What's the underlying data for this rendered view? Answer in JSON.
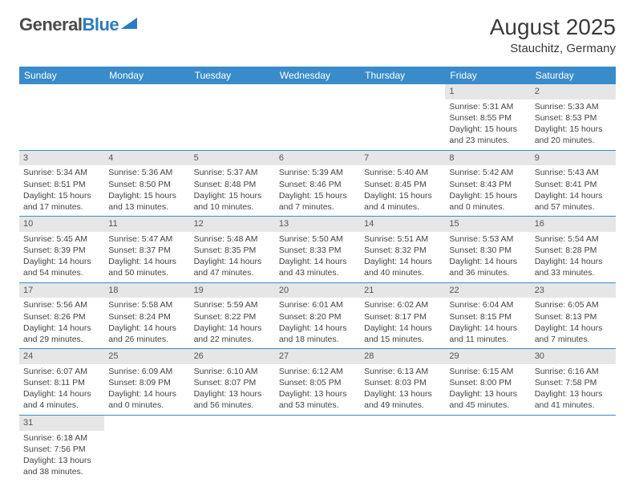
{
  "logo": {
    "part1": "General",
    "part2": "Blue"
  },
  "title": "August 2025",
  "location": "Stauchitz, Germany",
  "colors": {
    "header_bg": "#3a8bc9",
    "header_text": "#ffffff",
    "daynum_bg": "#e6e6e6",
    "row_divider": "#3a8bc9",
    "text": "#444444"
  },
  "weekdays": [
    "Sunday",
    "Monday",
    "Tuesday",
    "Wednesday",
    "Thursday",
    "Friday",
    "Saturday"
  ],
  "first_weekday_index": 5,
  "days": [
    {
      "n": 1,
      "sunrise": "5:31 AM",
      "sunset": "8:55 PM",
      "daylight": "15 hours and 23 minutes."
    },
    {
      "n": 2,
      "sunrise": "5:33 AM",
      "sunset": "8:53 PM",
      "daylight": "15 hours and 20 minutes."
    },
    {
      "n": 3,
      "sunrise": "5:34 AM",
      "sunset": "8:51 PM",
      "daylight": "15 hours and 17 minutes."
    },
    {
      "n": 4,
      "sunrise": "5:36 AM",
      "sunset": "8:50 PM",
      "daylight": "15 hours and 13 minutes."
    },
    {
      "n": 5,
      "sunrise": "5:37 AM",
      "sunset": "8:48 PM",
      "daylight": "15 hours and 10 minutes."
    },
    {
      "n": 6,
      "sunrise": "5:39 AM",
      "sunset": "8:46 PM",
      "daylight": "15 hours and 7 minutes."
    },
    {
      "n": 7,
      "sunrise": "5:40 AM",
      "sunset": "8:45 PM",
      "daylight": "15 hours and 4 minutes."
    },
    {
      "n": 8,
      "sunrise": "5:42 AM",
      "sunset": "8:43 PM",
      "daylight": "15 hours and 0 minutes."
    },
    {
      "n": 9,
      "sunrise": "5:43 AM",
      "sunset": "8:41 PM",
      "daylight": "14 hours and 57 minutes."
    },
    {
      "n": 10,
      "sunrise": "5:45 AM",
      "sunset": "8:39 PM",
      "daylight": "14 hours and 54 minutes."
    },
    {
      "n": 11,
      "sunrise": "5:47 AM",
      "sunset": "8:37 PM",
      "daylight": "14 hours and 50 minutes."
    },
    {
      "n": 12,
      "sunrise": "5:48 AM",
      "sunset": "8:35 PM",
      "daylight": "14 hours and 47 minutes."
    },
    {
      "n": 13,
      "sunrise": "5:50 AM",
      "sunset": "8:33 PM",
      "daylight": "14 hours and 43 minutes."
    },
    {
      "n": 14,
      "sunrise": "5:51 AM",
      "sunset": "8:32 PM",
      "daylight": "14 hours and 40 minutes."
    },
    {
      "n": 15,
      "sunrise": "5:53 AM",
      "sunset": "8:30 PM",
      "daylight": "14 hours and 36 minutes."
    },
    {
      "n": 16,
      "sunrise": "5:54 AM",
      "sunset": "8:28 PM",
      "daylight": "14 hours and 33 minutes."
    },
    {
      "n": 17,
      "sunrise": "5:56 AM",
      "sunset": "8:26 PM",
      "daylight": "14 hours and 29 minutes."
    },
    {
      "n": 18,
      "sunrise": "5:58 AM",
      "sunset": "8:24 PM",
      "daylight": "14 hours and 26 minutes."
    },
    {
      "n": 19,
      "sunrise": "5:59 AM",
      "sunset": "8:22 PM",
      "daylight": "14 hours and 22 minutes."
    },
    {
      "n": 20,
      "sunrise": "6:01 AM",
      "sunset": "8:20 PM",
      "daylight": "14 hours and 18 minutes."
    },
    {
      "n": 21,
      "sunrise": "6:02 AM",
      "sunset": "8:17 PM",
      "daylight": "14 hours and 15 minutes."
    },
    {
      "n": 22,
      "sunrise": "6:04 AM",
      "sunset": "8:15 PM",
      "daylight": "14 hours and 11 minutes."
    },
    {
      "n": 23,
      "sunrise": "6:05 AM",
      "sunset": "8:13 PM",
      "daylight": "14 hours and 7 minutes."
    },
    {
      "n": 24,
      "sunrise": "6:07 AM",
      "sunset": "8:11 PM",
      "daylight": "14 hours and 4 minutes."
    },
    {
      "n": 25,
      "sunrise": "6:09 AM",
      "sunset": "8:09 PM",
      "daylight": "14 hours and 0 minutes."
    },
    {
      "n": 26,
      "sunrise": "6:10 AM",
      "sunset": "8:07 PM",
      "daylight": "13 hours and 56 minutes."
    },
    {
      "n": 27,
      "sunrise": "6:12 AM",
      "sunset": "8:05 PM",
      "daylight": "13 hours and 53 minutes."
    },
    {
      "n": 28,
      "sunrise": "6:13 AM",
      "sunset": "8:03 PM",
      "daylight": "13 hours and 49 minutes."
    },
    {
      "n": 29,
      "sunrise": "6:15 AM",
      "sunset": "8:00 PM",
      "daylight": "13 hours and 45 minutes."
    },
    {
      "n": 30,
      "sunrise": "6:16 AM",
      "sunset": "7:58 PM",
      "daylight": "13 hours and 41 minutes."
    },
    {
      "n": 31,
      "sunrise": "6:18 AM",
      "sunset": "7:56 PM",
      "daylight": "13 hours and 38 minutes."
    }
  ],
  "labels": {
    "sunrise": "Sunrise:",
    "sunset": "Sunset:",
    "daylight": "Daylight:"
  }
}
